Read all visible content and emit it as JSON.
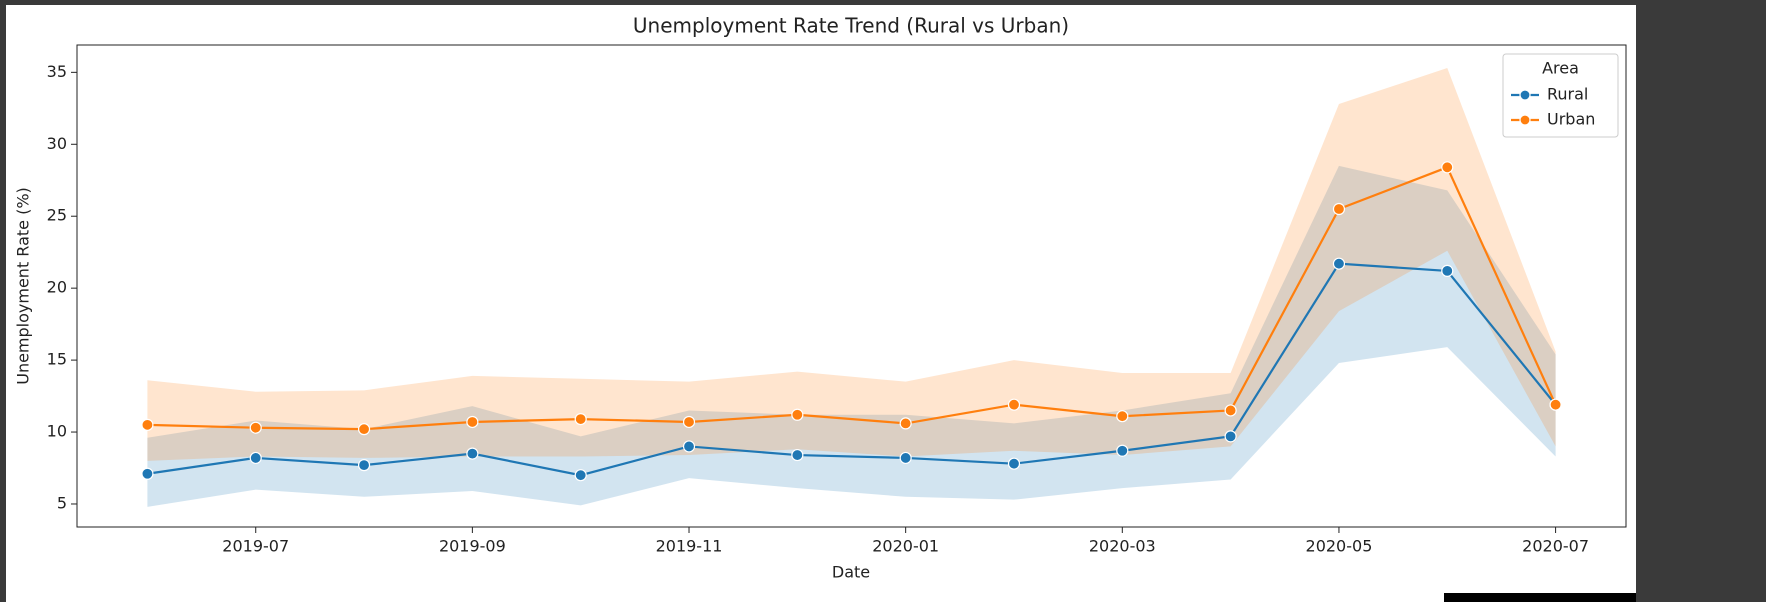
{
  "chart_data": {
    "type": "line",
    "title": "Unemployment Rate Trend (Rural vs Urban)",
    "x_label": "Date",
    "y_label": "Unemployment Rate (%)",
    "legend_title": "Area",
    "legend": "upper right",
    "x": [
      "2019-06",
      "2019-07",
      "2019-08",
      "2019-09",
      "2019-10",
      "2019-11",
      "2019-12",
      "2020-01",
      "2020-02",
      "2020-03",
      "2020-04",
      "2020-05",
      "2020-06",
      "2020-07"
    ],
    "xticks": [
      "2019-07",
      "2019-09",
      "2019-11",
      "2020-01",
      "2020-03",
      "2020-05",
      "2020-07"
    ],
    "ylim": [
      3.4,
      36.9
    ],
    "yticks": [
      5,
      10,
      15,
      20,
      25,
      30,
      35
    ],
    "series": [
      {
        "name": "Rural",
        "color": "#1f77b4",
        "values": [
          7.1,
          8.2,
          7.7,
          8.5,
          7.0,
          9.0,
          8.4,
          8.2,
          7.8,
          8.7,
          9.7,
          21.7,
          21.2,
          11.9
        ],
        "ci_lower": [
          4.8,
          6.0,
          5.5,
          5.9,
          4.9,
          6.8,
          6.1,
          5.5,
          5.3,
          6.1,
          6.7,
          14.8,
          15.9,
          8.3
        ],
        "ci_upper": [
          9.6,
          10.8,
          10.2,
          11.8,
          9.7,
          11.5,
          11.2,
          11.2,
          10.6,
          11.5,
          12.7,
          28.5,
          26.8,
          15.4
        ]
      },
      {
        "name": "Urban",
        "color": "#ff7f0e",
        "values": [
          10.5,
          10.3,
          10.2,
          10.7,
          10.9,
          10.7,
          11.2,
          10.6,
          11.9,
          11.1,
          11.5,
          25.5,
          28.4,
          11.9
        ],
        "ci_lower": [
          8.0,
          8.3,
          8.2,
          8.3,
          8.3,
          8.4,
          8.8,
          8.3,
          8.7,
          8.4,
          9.0,
          18.4,
          22.6,
          9.0
        ],
        "ci_upper": [
          13.6,
          12.8,
          12.9,
          13.9,
          13.7,
          13.5,
          14.2,
          13.5,
          15.0,
          14.1,
          14.1,
          32.8,
          35.3,
          15.6
        ]
      }
    ]
  }
}
